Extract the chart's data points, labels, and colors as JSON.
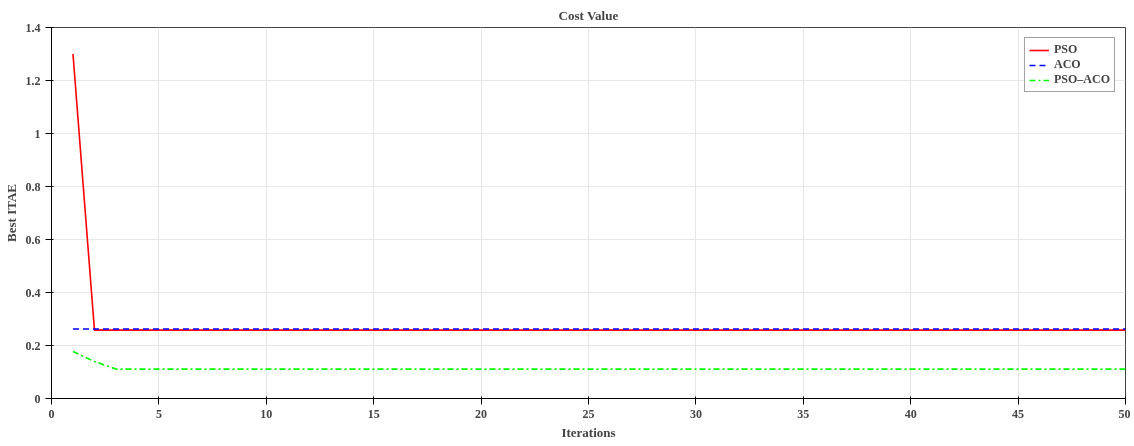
{
  "chart_data": {
    "type": "line",
    "title": "Cost Value",
    "xlabel": "Iterations",
    "ylabel": "Best ITAE",
    "xlim": [
      0,
      50
    ],
    "ylim": [
      0,
      1.4
    ],
    "xticks": [
      0,
      5,
      10,
      15,
      20,
      25,
      30,
      35,
      40,
      45,
      50
    ],
    "yticks": [
      0,
      0.2,
      0.4,
      0.6,
      0.8,
      1,
      1.2,
      1.4
    ],
    "grid": true,
    "legend": "top right",
    "marker": "none",
    "series": [
      {
        "name": "PSO",
        "color": "#ff0000",
        "line_style": "solid",
        "x": [
          1,
          2,
          50
        ],
        "values": [
          1.3,
          0.258,
          0.258
        ]
      },
      {
        "name": "ACO",
        "color": "#0000ff",
        "line_style": "dashed",
        "x": [
          1,
          50
        ],
        "values": [
          0.262,
          0.262
        ]
      },
      {
        "name": "PSO–ACO",
        "color": "#00ff00",
        "line_style": "dashdot",
        "x": [
          1,
          2,
          3,
          50
        ],
        "values": [
          0.177,
          0.14,
          0.111,
          0.111
        ]
      }
    ]
  }
}
